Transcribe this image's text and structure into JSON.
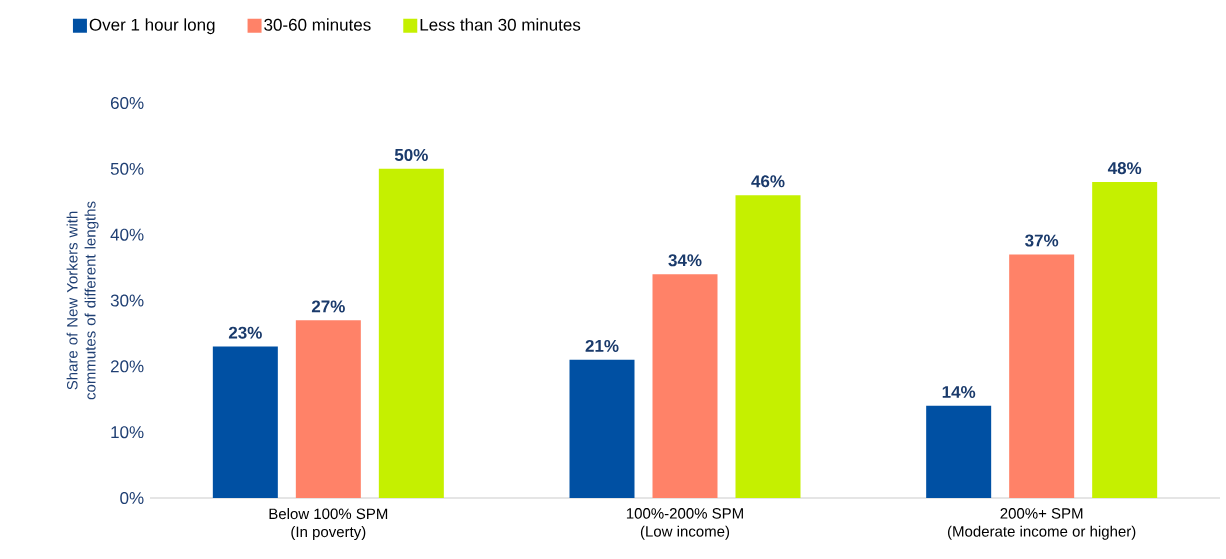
{
  "chart_data": {
    "type": "bar",
    "ylabel": "Share of New Yorkers with commutes of different lengths",
    "categories": [
      "Below 100% SPM\n(In poverty)",
      "100%-200% SPM\n(Low income)",
      "200%+ SPM\n(Moderate income or higher)"
    ],
    "series": [
      {
        "name": "Over 1 hour long",
        "color": "#0050a3",
        "values": [
          23,
          21,
          14
        ],
        "value_labels": [
          "23%",
          "21%",
          "14%"
        ]
      },
      {
        "name": "30-60 minutes",
        "color": "#ff8268",
        "values": [
          27,
          34,
          37
        ],
        "value_labels": [
          "27%",
          "34%",
          "37%"
        ]
      },
      {
        "name": "Less than 30 minutes",
        "color": "#c5f000",
        "values": [
          50,
          46,
          48
        ],
        "value_labels": [
          "50%",
          "46%",
          "48%"
        ]
      }
    ],
    "ylim": [
      0,
      60
    ],
    "yticks": [
      {
        "value": 0,
        "label": "0%"
      },
      {
        "value": 10,
        "label": "10%"
      },
      {
        "value": 20,
        "label": "20%"
      },
      {
        "value": 30,
        "label": "30%"
      },
      {
        "value": 40,
        "label": "40%"
      },
      {
        "value": 50,
        "label": "50%"
      },
      {
        "value": 60,
        "label": "60%"
      }
    ],
    "legend": "top left",
    "grid": false
  }
}
